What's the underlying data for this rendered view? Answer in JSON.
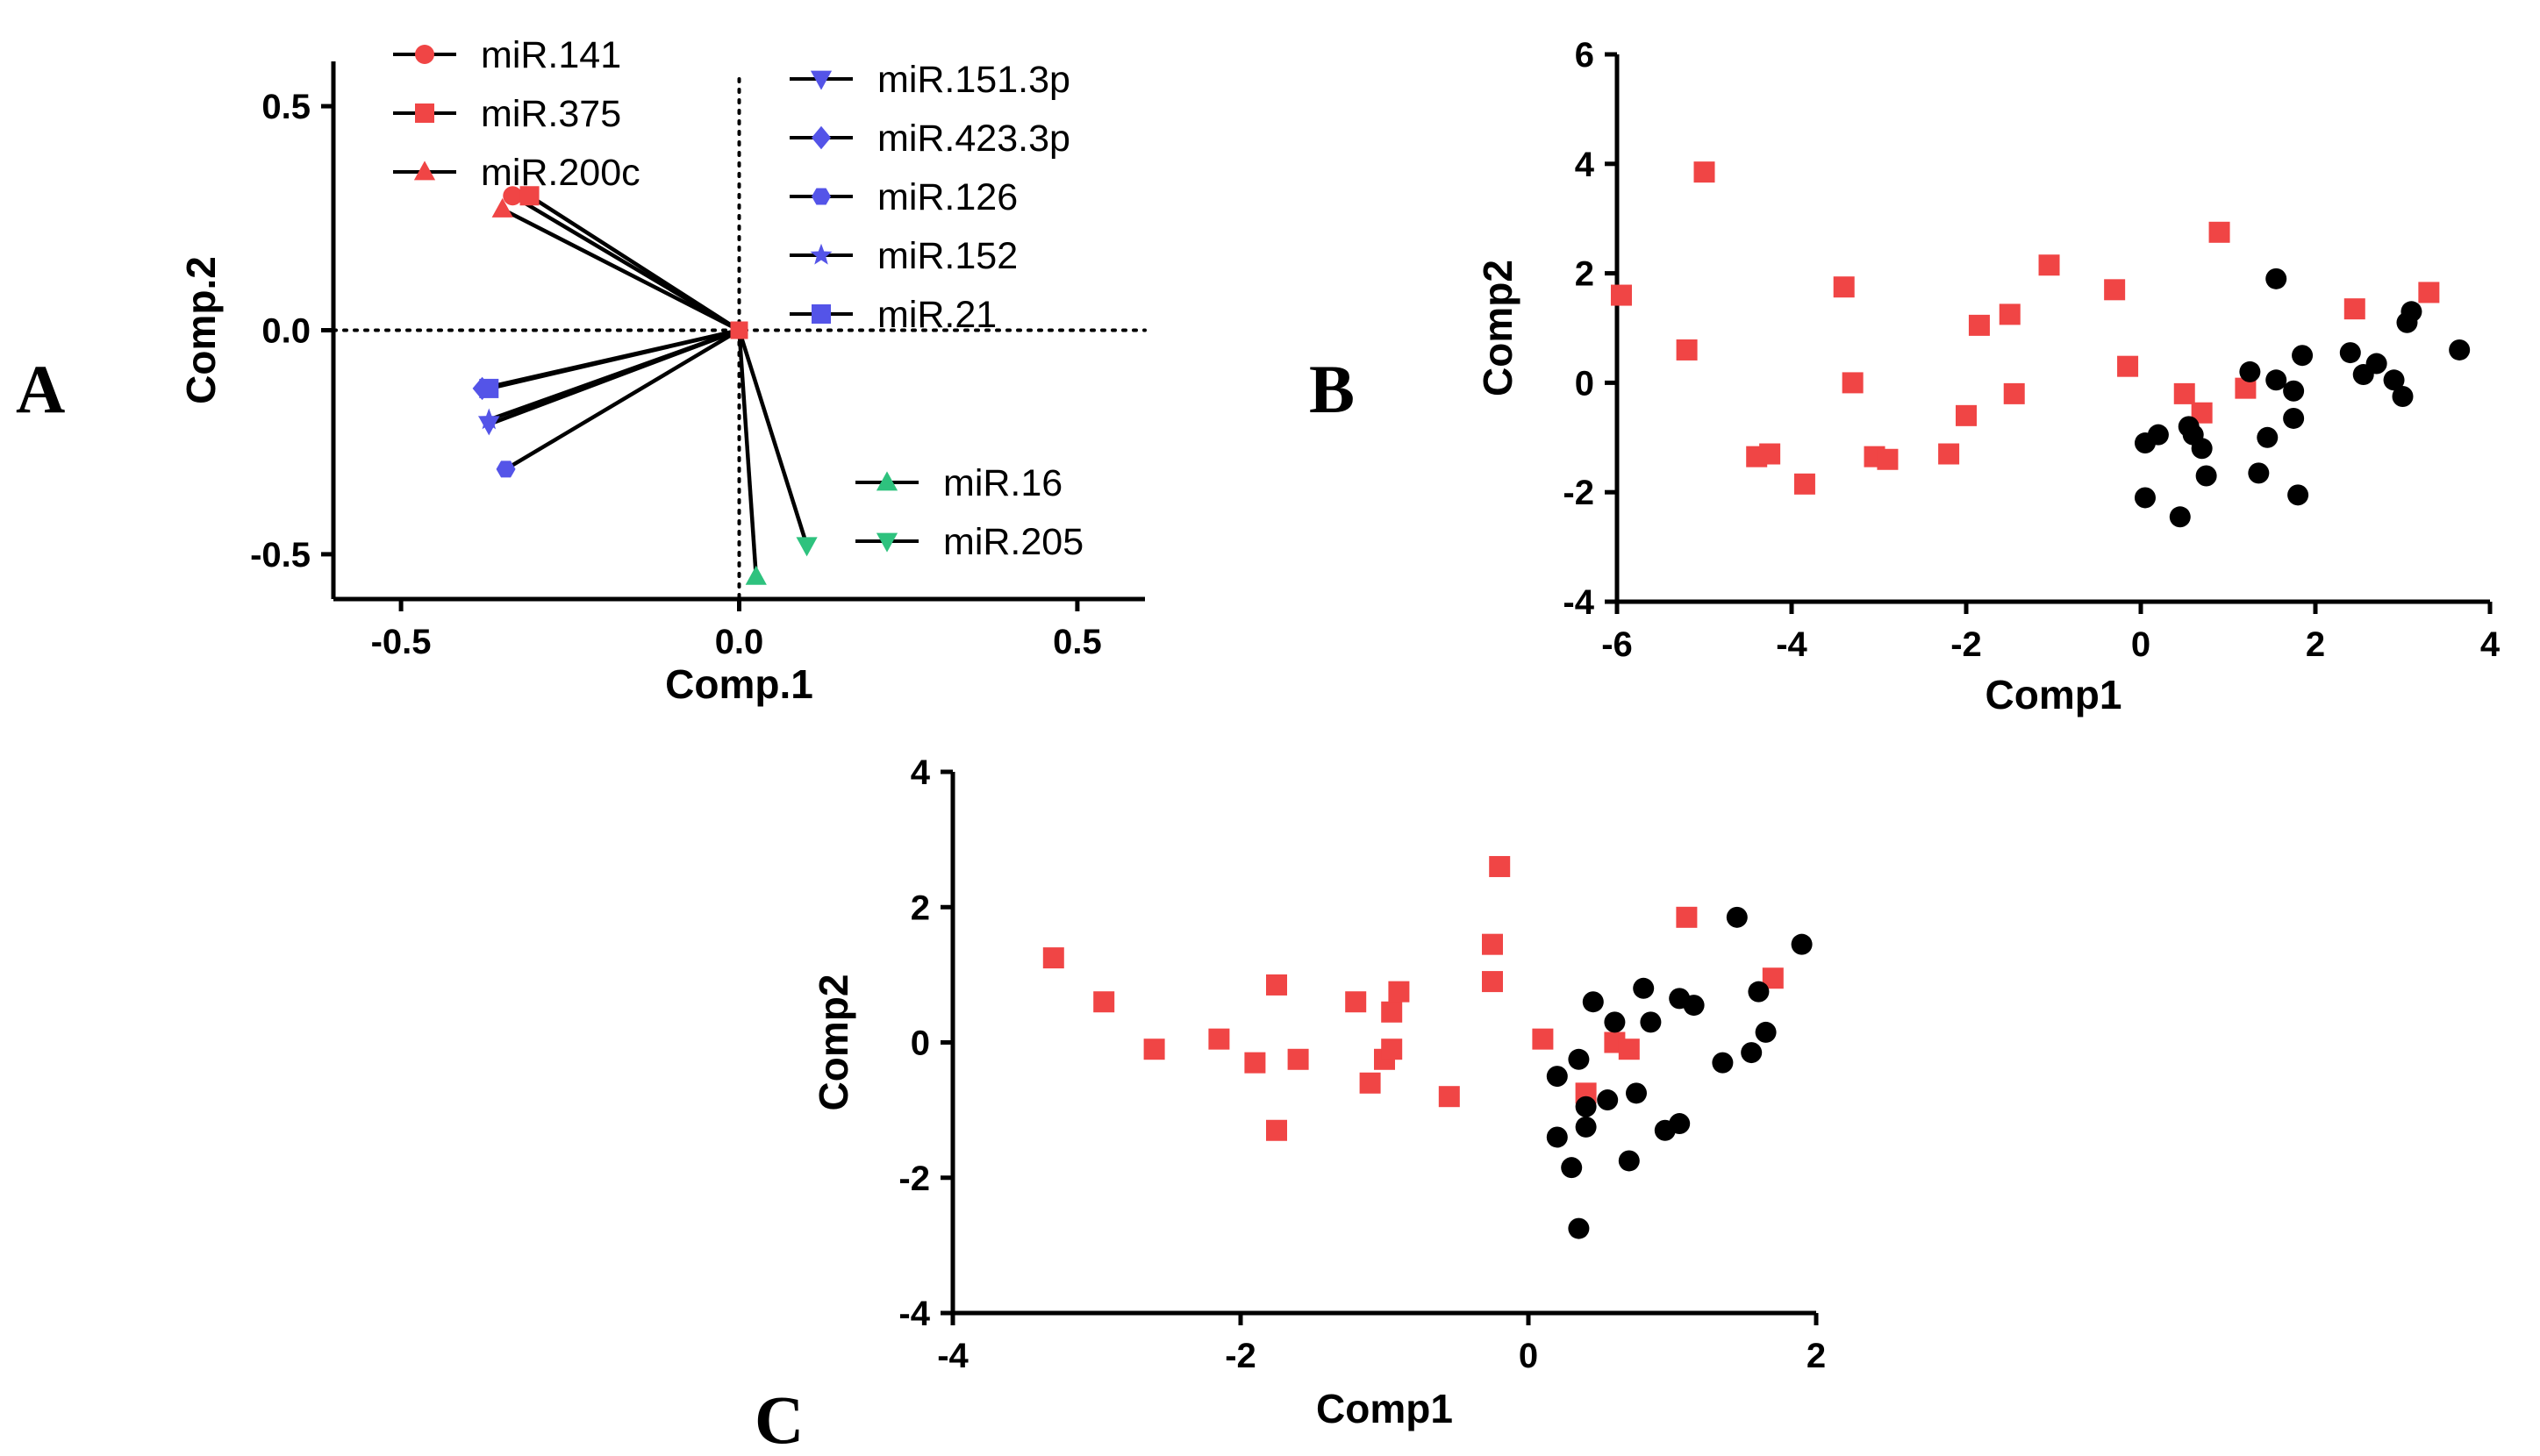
{
  "panel_labels": {
    "a": "A",
    "b": "B",
    "c": "C"
  },
  "colors": {
    "red": "#f04545",
    "blue": "#5454e8",
    "green": "#2ec27e",
    "black": "#000000"
  },
  "chart_data": [
    {
      "id": "A",
      "type": "scatter",
      "subtype": "biplot-loadings",
      "xlabel": "Comp.1",
      "ylabel": "Comp.2",
      "xlim": [
        -0.6,
        0.6
      ],
      "ylim": [
        -0.6,
        0.6
      ],
      "xticks": [
        "-0.5",
        "0.0",
        "0.5"
      ],
      "yticks": [
        "-0.5",
        "0.0",
        "0.5"
      ],
      "xtick_values": [
        -0.5,
        0.0,
        0.5
      ],
      "ytick_values": [
        -0.5,
        0.0,
        0.5
      ],
      "reference_lines": {
        "x": 0,
        "y": 0,
        "style": "dotted"
      },
      "series": [
        {
          "name": "miR.141",
          "x": -0.335,
          "y": 0.3,
          "marker": "circle",
          "color": "red"
        },
        {
          "name": "miR.375",
          "x": -0.31,
          "y": 0.3,
          "marker": "square",
          "color": "red"
        },
        {
          "name": "miR.200c",
          "x": -0.35,
          "y": 0.27,
          "marker": "triangle-up",
          "color": "red"
        },
        {
          "name": "miR.151.3p",
          "x": -0.37,
          "y": -0.21,
          "marker": "triangle-down",
          "color": "blue"
        },
        {
          "name": "miR.423.3p",
          "x": -0.38,
          "y": -0.13,
          "marker": "diamond",
          "color": "blue"
        },
        {
          "name": "miR.126",
          "x": -0.345,
          "y": -0.31,
          "marker": "hexagon",
          "color": "blue"
        },
        {
          "name": "miR.152",
          "x": -0.37,
          "y": -0.2,
          "marker": "star",
          "color": "blue"
        },
        {
          "name": "miR.21",
          "x": -0.37,
          "y": -0.13,
          "marker": "square",
          "color": "blue"
        },
        {
          "name": "miR.16",
          "x": 0.025,
          "y": -0.55,
          "marker": "triangle-up",
          "color": "green"
        },
        {
          "name": "miR.205",
          "x": 0.1,
          "y": -0.48,
          "marker": "triangle-down",
          "color": "green"
        }
      ]
    },
    {
      "id": "B",
      "type": "scatter",
      "xlabel": "Comp1",
      "ylabel": "Comp2",
      "xlim": [
        -6,
        4
      ],
      "ylim": [
        -4,
        6
      ],
      "xticks": [
        "-6",
        "-4",
        "-2",
        "0",
        "2",
        "4"
      ],
      "yticks": [
        "-4",
        "-2",
        "0",
        "2",
        "4",
        "6"
      ],
      "xtick_values": [
        -6,
        -4,
        -2,
        0,
        2,
        4
      ],
      "ytick_values": [
        -4,
        -2,
        0,
        2,
        4,
        6
      ],
      "series": [
        {
          "name": "red squares",
          "marker": "square",
          "color": "red",
          "points": [
            [
              -5.95,
              1.6
            ],
            [
              -5.0,
              3.85
            ],
            [
              -5.2,
              0.6
            ],
            [
              -3.4,
              1.75
            ],
            [
              -3.3,
              0.0
            ],
            [
              -4.4,
              -1.35
            ],
            [
              -4.25,
              -1.3
            ],
            [
              -3.85,
              -1.85
            ],
            [
              -3.05,
              -1.35
            ],
            [
              -2.9,
              -1.4
            ],
            [
              -2.2,
              -1.3
            ],
            [
              -2.0,
              -0.6
            ],
            [
              -1.85,
              1.05
            ],
            [
              -1.5,
              1.25
            ],
            [
              -1.45,
              -0.2
            ],
            [
              -1.05,
              2.15
            ],
            [
              -0.3,
              1.7
            ],
            [
              -0.15,
              0.3
            ],
            [
              0.5,
              -0.2
            ],
            [
              0.7,
              -0.55
            ],
            [
              0.9,
              2.75
            ],
            [
              1.2,
              -0.1
            ],
            [
              2.45,
              1.35
            ],
            [
              3.3,
              1.65
            ]
          ]
        },
        {
          "name": "black circles",
          "marker": "circle",
          "color": "black",
          "points": [
            [
              0.05,
              -1.1
            ],
            [
              0.2,
              -0.95
            ],
            [
              0.05,
              -2.1
            ],
            [
              0.45,
              -2.45
            ],
            [
              0.55,
              -0.8
            ],
            [
              0.6,
              -0.95
            ],
            [
              0.7,
              -1.2
            ],
            [
              0.75,
              -1.7
            ],
            [
              1.25,
              0.2
            ],
            [
              1.35,
              -1.65
            ],
            [
              1.45,
              -1.0
            ],
            [
              1.55,
              1.9
            ],
            [
              1.55,
              0.05
            ],
            [
              1.75,
              -0.15
            ],
            [
              1.75,
              -0.65
            ],
            [
              1.8,
              -2.05
            ],
            [
              1.85,
              0.5
            ],
            [
              2.4,
              0.55
            ],
            [
              2.55,
              0.15
            ],
            [
              2.7,
              0.35
            ],
            [
              2.9,
              0.05
            ],
            [
              3.0,
              -0.25
            ],
            [
              3.05,
              1.1
            ],
            [
              3.1,
              1.3
            ],
            [
              3.65,
              0.6
            ]
          ]
        }
      ]
    },
    {
      "id": "C",
      "type": "scatter",
      "xlabel": "Comp1",
      "ylabel": "Comp2",
      "xlim": [
        -4,
        2
      ],
      "ylim": [
        -4,
        4
      ],
      "xticks": [
        "-4",
        "-2",
        "0",
        "2"
      ],
      "yticks": [
        "-4",
        "-2",
        "0",
        "2",
        "4"
      ],
      "xtick_values": [
        -4,
        -2,
        0,
        2
      ],
      "ytick_values": [
        -4,
        -2,
        0,
        2,
        4
      ],
      "series": [
        {
          "name": "red squares",
          "marker": "square",
          "color": "red",
          "points": [
            [
              -3.3,
              1.25
            ],
            [
              -2.95,
              0.6
            ],
            [
              -2.6,
              -0.1
            ],
            [
              -2.15,
              0.05
            ],
            [
              -1.9,
              -0.3
            ],
            [
              -1.75,
              0.85
            ],
            [
              -1.75,
              -1.3
            ],
            [
              -1.6,
              -0.25
            ],
            [
              -1.2,
              0.6
            ],
            [
              -1.1,
              -0.6
            ],
            [
              -1.0,
              -0.25
            ],
            [
              -0.95,
              0.45
            ],
            [
              -0.95,
              -0.1
            ],
            [
              -0.9,
              0.75
            ],
            [
              -0.55,
              -0.8
            ],
            [
              -0.25,
              1.45
            ],
            [
              -0.25,
              0.9
            ],
            [
              -0.2,
              2.6
            ],
            [
              0.1,
              0.05
            ],
            [
              0.4,
              -0.75
            ],
            [
              0.6,
              0.0
            ],
            [
              0.7,
              -0.1
            ],
            [
              1.1,
              1.85
            ],
            [
              1.7,
              0.95
            ]
          ]
        },
        {
          "name": "black circles",
          "marker": "circle",
          "color": "black",
          "points": [
            [
              0.2,
              -0.5
            ],
            [
              0.2,
              -1.4
            ],
            [
              0.3,
              -1.85
            ],
            [
              0.35,
              -2.75
            ],
            [
              0.35,
              -0.25
            ],
            [
              0.4,
              -1.25
            ],
            [
              0.4,
              -0.95
            ],
            [
              0.45,
              0.6
            ],
            [
              0.55,
              -0.85
            ],
            [
              0.6,
              0.3
            ],
            [
              0.7,
              -1.75
            ],
            [
              0.75,
              -0.75
            ],
            [
              0.8,
              0.8
            ],
            [
              0.85,
              0.3
            ],
            [
              0.95,
              -1.3
            ],
            [
              1.05,
              -1.2
            ],
            [
              1.05,
              0.65
            ],
            [
              1.15,
              0.55
            ],
            [
              1.35,
              -0.3
            ],
            [
              1.45,
              1.85
            ],
            [
              1.55,
              -0.15
            ],
            [
              1.6,
              0.75
            ],
            [
              1.65,
              0.15
            ],
            [
              1.9,
              1.45
            ]
          ]
        }
      ]
    }
  ]
}
